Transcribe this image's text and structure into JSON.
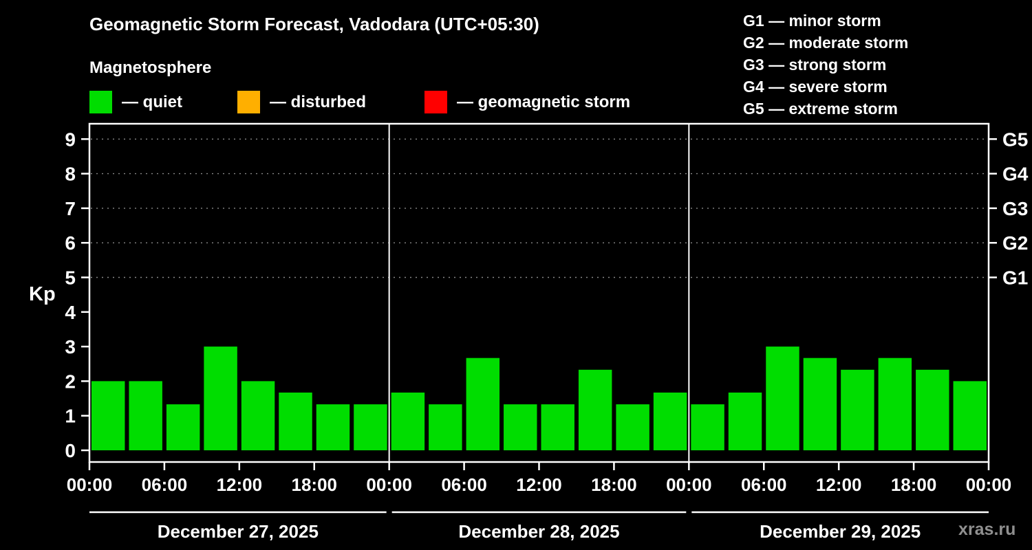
{
  "title": "Geomagnetic Storm Forecast, Vadodara (UTC+05:30)",
  "subtitle": "Magnetosphere",
  "legend": {
    "items": [
      {
        "name": "quiet",
        "label": "— quiet",
        "color": "#00dd00"
      },
      {
        "name": "disturbed",
        "label": "— disturbed",
        "color": "#ffaf00"
      },
      {
        "name": "storm",
        "label": "— geomagnetic storm",
        "color": "#ff0000"
      }
    ]
  },
  "g_scale": {
    "lines": [
      "G1 — minor storm",
      "G2 — moderate storm",
      "G3 — strong storm",
      "G4 — severe storm",
      "G5 — extreme storm"
    ]
  },
  "watermark": "xras.ru",
  "chart_data": {
    "type": "bar",
    "title": "Geomagnetic Storm Forecast, Vadodara (UTC+05:30)",
    "ylabel": "Kp",
    "ylim": [
      0,
      9.5
    ],
    "yticks": [
      0,
      1,
      2,
      3,
      4,
      5,
      6,
      7,
      8,
      9
    ],
    "grid_levels": [
      5,
      6,
      7,
      8,
      9
    ],
    "right_axis": [
      {
        "label": "G5",
        "kp": 9
      },
      {
        "label": "G4",
        "kp": 8
      },
      {
        "label": "G3",
        "kp": 7
      },
      {
        "label": "G2",
        "kp": 6
      },
      {
        "label": "G1",
        "kp": 5
      }
    ],
    "x_tick_labels": [
      "00:00",
      "06:00",
      "12:00",
      "18:00",
      "00:00",
      "06:00",
      "12:00",
      "18:00",
      "00:00",
      "06:00",
      "12:00",
      "18:00",
      "00:00"
    ],
    "bar_interval_hours": 3,
    "bar_color": "#00dd00",
    "days": [
      {
        "date": "December 27, 2025",
        "values": [
          2,
          2,
          1.33,
          3,
          2,
          1.67,
          1.33,
          1.33
        ]
      },
      {
        "date": "December 28, 2025",
        "values": [
          1.67,
          1.33,
          2.67,
          1.33,
          1.33,
          2.33,
          1.33,
          1.67
        ]
      },
      {
        "date": "December 29, 2025",
        "values": [
          1.33,
          1.67,
          3,
          2.67,
          2.33,
          2.67,
          2.33,
          2
        ]
      }
    ]
  }
}
